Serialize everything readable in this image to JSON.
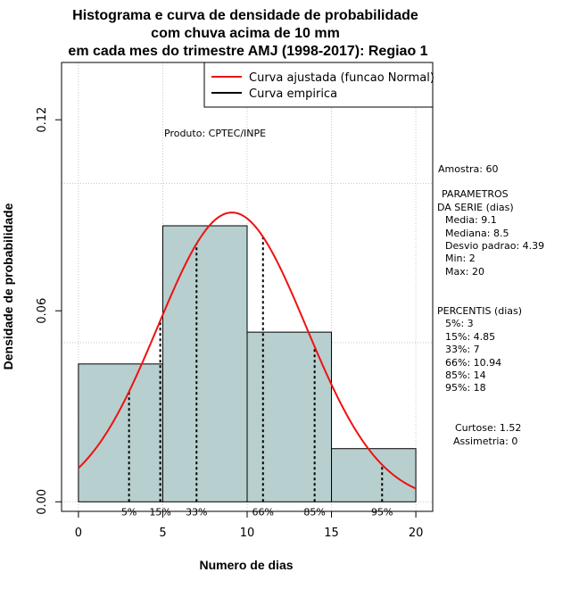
{
  "chart_data": {
    "type": "bar",
    "title_lines": [
      "Histograma e curva de densidade de probabilidade",
      "com chuva acima de 10 mm",
      "em cada mes do trimestre AMJ (1998-2017): Regiao 1"
    ],
    "xlabel": "Numero de dias",
    "ylabel": "Densidade de probabilidade",
    "xlim": [
      -1,
      21
    ],
    "ylim": [
      -0.003,
      0.138
    ],
    "x_ticks": [
      0,
      5,
      10,
      15,
      20
    ],
    "x_tick_labels": [
      "0",
      "5",
      "10",
      "15",
      "20"
    ],
    "y_ticks": [
      0.0,
      0.06,
      0.12
    ],
    "y_tick_labels": [
      "0.00",
      "0.06",
      "0.12"
    ],
    "grid": true,
    "grid_x": [
      0,
      5,
      10,
      15,
      20
    ],
    "grid_y": [
      0.0,
      0.05,
      0.1
    ],
    "bins": [
      {
        "x0": 0,
        "x1": 5,
        "density": 0.0433
      },
      {
        "x0": 5,
        "x1": 10,
        "density": 0.0867
      },
      {
        "x0": 10,
        "x1": 15,
        "density": 0.0533
      },
      {
        "x0": 15,
        "x1": 20,
        "density": 0.0167
      }
    ],
    "bar_color": "#b7cfcf",
    "normal_curve": {
      "name": "Curva ajustada (funcao Normal)",
      "mean": 9.1,
      "sd": 4.39,
      "x_from": 0,
      "x_to": 20,
      "color": "#ee1111"
    },
    "empirical_name": "Curva empirica",
    "percentile_lines": [
      {
        "label": "5%",
        "x": 3
      },
      {
        "label": "15%",
        "x": 4.85
      },
      {
        "label": "33%",
        "x": 7
      },
      {
        "label": "66%",
        "x": 10.94
      },
      {
        "label": "85%",
        "x": 14
      },
      {
        "label": "95%",
        "x": 18
      }
    ],
    "legend": {
      "position": "top-right",
      "items": [
        {
          "label": "Curva ajustada (funcao Normal)",
          "color": "#ee1111"
        },
        {
          "label": "Curva empirica",
          "color": "#000000"
        }
      ]
    },
    "annotation": "Produto: CPTEC/INPE"
  },
  "stats": {
    "amostra": "Amostra: 60",
    "parametros_title": [
      "PARAMETROS",
      "DA SERIE (dias)"
    ],
    "parametros": [
      "Media: 9.1",
      "Mediana: 8.5",
      "Desvio padrao: 4.39",
      "Min: 2",
      "Max: 20"
    ],
    "percentis_title": "PERCENTIS (dias)",
    "percentis": [
      "5%: 3",
      "15%: 4.85",
      "33%: 7",
      "66%: 10.94",
      "85%: 14",
      "95%: 18"
    ],
    "curtose": "Curtose: 1.52",
    "assimetria": "Assimetria: 0"
  }
}
